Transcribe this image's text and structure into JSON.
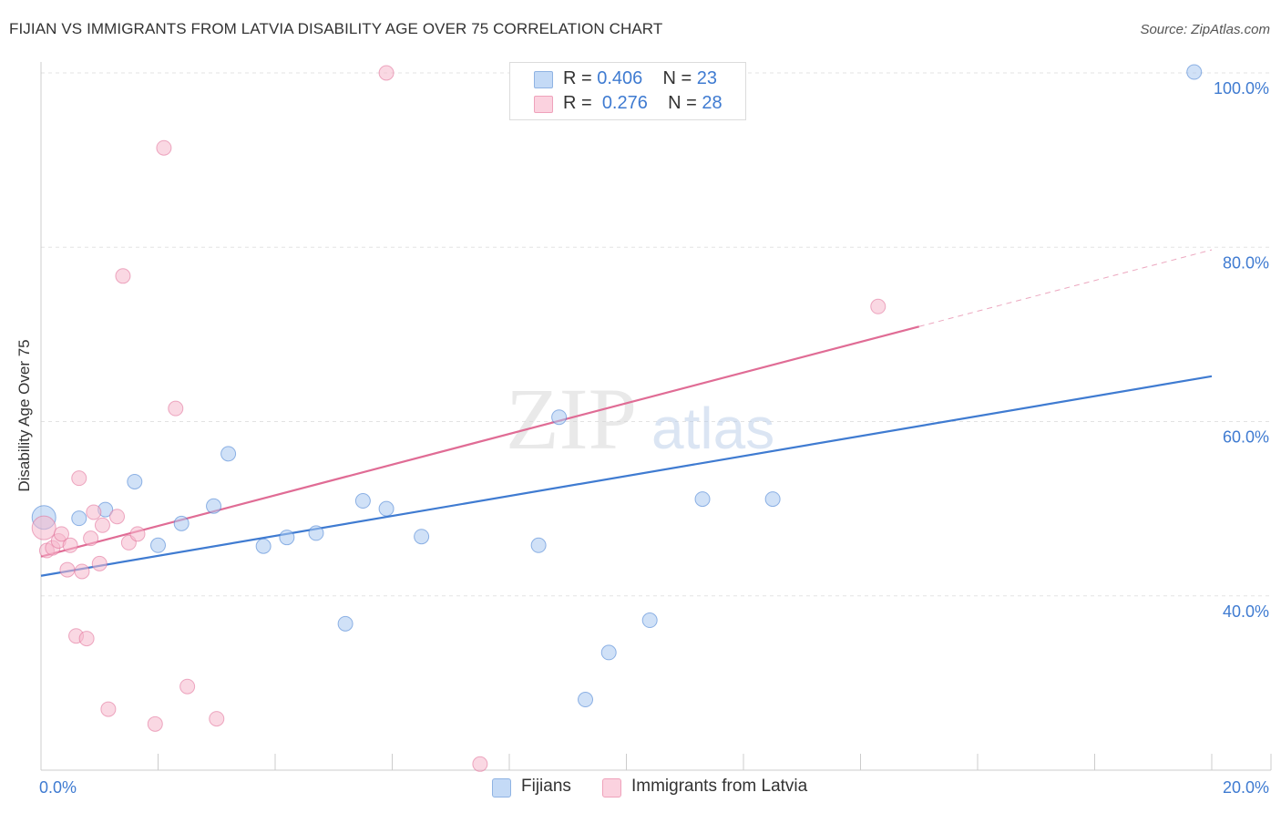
{
  "header": {
    "title": "FIJIAN VS IMMIGRANTS FROM LATVIA DISABILITY AGE OVER 75 CORRELATION CHART",
    "source": "Source: ZipAtlas.com"
  },
  "watermark": {
    "zip": "ZIP",
    "atlas": "atlas"
  },
  "stats_legend": [
    {
      "r_label": "R = ",
      "r_value": "0.406",
      "n_label": "N = ",
      "n_value": "23",
      "color": "#a9c8f0"
    },
    {
      "r_label": "R = ",
      "r_value": "0.276",
      "n_label": "N = ",
      "n_value": "28",
      "color": "#f6b8cc"
    }
  ],
  "chart_data": {
    "type": "scatter",
    "title": "FIJIAN VS IMMIGRANTS FROM LATVIA DISABILITY AGE OVER 75 CORRELATION CHART",
    "ylabel": "Disability Age Over 75",
    "xlabel": "",
    "xlim": [
      0,
      20
    ],
    "ylim": [
      20,
      102
    ],
    "x_tick_labels": [
      "0.0%",
      "20.0%"
    ],
    "y_ticks": [
      40,
      60,
      80,
      100
    ],
    "y_tick_labels": [
      "40.0%",
      "60.0%",
      "80.0%",
      "100.0%"
    ],
    "grid": true,
    "legend_position": "bottom",
    "series": [
      {
        "name": "Fijians",
        "color": "#3f7bd1",
        "fill": "#a9c8f0",
        "trend": {
          "x": [
            0,
            20
          ],
          "y": [
            42.3,
            65.2
          ],
          "dashed_after": null
        },
        "points": [
          {
            "x": 0.05,
            "y": 49.0,
            "big": true
          },
          {
            "x": 0.65,
            "y": 48.9
          },
          {
            "x": 1.1,
            "y": 49.9
          },
          {
            "x": 1.6,
            "y": 53.1
          },
          {
            "x": 2.0,
            "y": 45.8
          },
          {
            "x": 2.4,
            "y": 48.3
          },
          {
            "x": 2.95,
            "y": 50.3
          },
          {
            "x": 3.2,
            "y": 56.3
          },
          {
            "x": 3.8,
            "y": 45.7
          },
          {
            "x": 4.2,
            "y": 46.7
          },
          {
            "x": 4.7,
            "y": 47.2
          },
          {
            "x": 5.2,
            "y": 36.8
          },
          {
            "x": 5.5,
            "y": 50.9
          },
          {
            "x": 5.9,
            "y": 50.0
          },
          {
            "x": 6.5,
            "y": 46.8
          },
          {
            "x": 8.5,
            "y": 45.8
          },
          {
            "x": 8.85,
            "y": 60.5
          },
          {
            "x": 9.3,
            "y": 28.1
          },
          {
            "x": 9.7,
            "y": 33.5
          },
          {
            "x": 10.4,
            "y": 37.2
          },
          {
            "x": 11.3,
            "y": 51.1
          },
          {
            "x": 12.5,
            "y": 51.1
          },
          {
            "x": 19.7,
            "y": 100.1
          }
        ]
      },
      {
        "name": "Immigrants from Latvia",
        "color": "#e06c95",
        "fill": "#f6b8cc",
        "trend": {
          "x": [
            0,
            20
          ],
          "y": [
            44.5,
            79.7
          ],
          "dashed_after": 15.0
        },
        "points": [
          {
            "x": 0.05,
            "y": 47.8,
            "big": true
          },
          {
            "x": 0.1,
            "y": 45.2
          },
          {
            "x": 0.2,
            "y": 45.5
          },
          {
            "x": 0.3,
            "y": 46.3
          },
          {
            "x": 0.35,
            "y": 47.1
          },
          {
            "x": 0.45,
            "y": 43.0
          },
          {
            "x": 0.5,
            "y": 45.8
          },
          {
            "x": 0.6,
            "y": 35.4
          },
          {
            "x": 0.65,
            "y": 53.5
          },
          {
            "x": 0.7,
            "y": 42.8
          },
          {
            "x": 0.78,
            "y": 35.1
          },
          {
            "x": 0.85,
            "y": 46.6
          },
          {
            "x": 0.9,
            "y": 49.6
          },
          {
            "x": 1.0,
            "y": 43.7
          },
          {
            "x": 1.05,
            "y": 48.1
          },
          {
            "x": 1.15,
            "y": 27.0
          },
          {
            "x": 1.3,
            "y": 49.1
          },
          {
            "x": 1.4,
            "y": 76.7
          },
          {
            "x": 1.5,
            "y": 46.1
          },
          {
            "x": 1.65,
            "y": 47.1
          },
          {
            "x": 1.95,
            "y": 25.3
          },
          {
            "x": 2.1,
            "y": 91.4
          },
          {
            "x": 2.3,
            "y": 61.5
          },
          {
            "x": 2.5,
            "y": 29.6
          },
          {
            "x": 3.0,
            "y": 25.9
          },
          {
            "x": 5.9,
            "y": 100.0
          },
          {
            "x": 7.5,
            "y": 20.7
          },
          {
            "x": 14.3,
            "y": 73.2
          }
        ]
      }
    ]
  }
}
